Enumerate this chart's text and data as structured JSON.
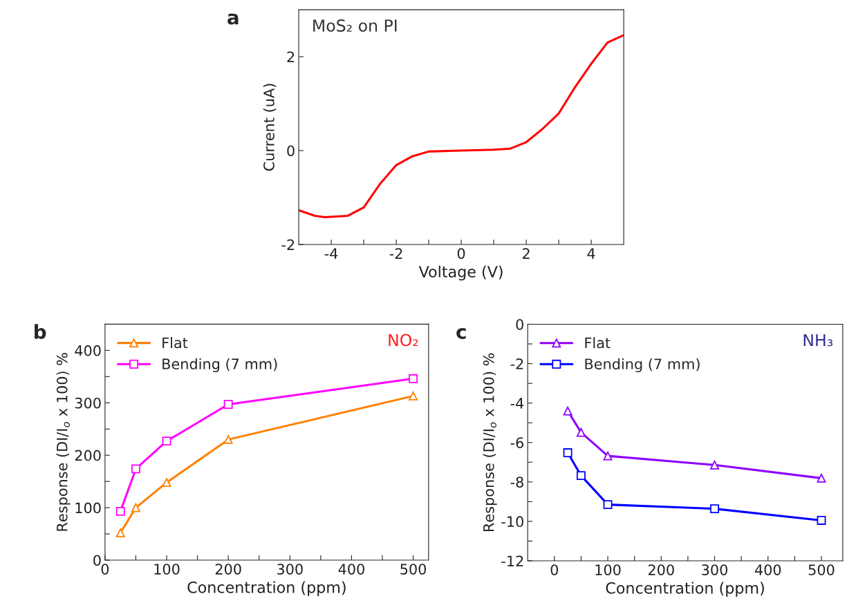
{
  "chart_data": [
    {
      "type": "line",
      "title": "a",
      "xlabel": "Voltage (V)",
      "ylabel": "Current (uA)",
      "annotations": [
        "MoS₂ on PI"
      ],
      "xlim": [
        -5,
        5
      ],
      "ylim": [
        -2,
        3
      ],
      "xticks": [
        -4,
        {
          "value": -3,
          "label": null
        },
        -2,
        {
          "value": -1,
          "label": null
        },
        0,
        {
          "value": 1,
          "label": null
        },
        2,
        {
          "value": 3,
          "label": null
        },
        4
      ],
      "yticks": [
        -2,
        0,
        2
      ],
      "x": [
        -5,
        -4.5,
        -4.2,
        -3.5,
        -3,
        -2.5,
        -2,
        -1.5,
        -1,
        0,
        1,
        1.5,
        2,
        2.5,
        3,
        3.5,
        4,
        4.5,
        5
      ],
      "series": [
        {
          "color": "#ff0000",
          "values": [
            -1.27,
            -1.39,
            -1.42,
            -1.39,
            -1.21,
            -0.71,
            -0.31,
            -0.12,
            -0.02,
            0,
            0.02,
            0.04,
            0.18,
            0.46,
            0.79,
            1.35,
            1.85,
            2.3,
            2.46
          ]
        }
      ],
      "grid": false,
      "marker": "none",
      "line_style": "solid"
    },
    {
      "type": "line",
      "title": "b",
      "xlabel": "Concentration (ppm)",
      "ylabel": "Response (DI/I$_{o}$ x 100) %",
      "annotations": [
        "NO₂"
      ],
      "xlim": [
        0,
        525
      ],
      "ylim": [
        0,
        450
      ],
      "xticks": [
        0,
        {
          "value": 50,
          "label": null
        },
        100,
        {
          "value": 150,
          "label": null
        },
        200,
        {
          "value": 250,
          "label": null
        },
        300,
        {
          "value": 350,
          "label": null
        },
        400,
        {
          "value": 450,
          "label": null
        },
        500
      ],
      "yticks": [
        0,
        {
          "value": 50,
          "label": null
        },
        100,
        {
          "value": 150,
          "label": null
        },
        200,
        {
          "value": 250,
          "label": null
        },
        300,
        {
          "value": 350,
          "label": null
        },
        400
      ],
      "x": [
        25,
        50,
        100,
        200,
        500
      ],
      "series": [
        {
          "name": "Flat",
          "color": "#ff8000",
          "marker": "triangle",
          "values": [
            52,
            100,
            148,
            230,
            313
          ]
        },
        {
          "name": "Bending (7 mm)",
          "color": "#ff00ff",
          "marker": "square",
          "values": [
            93,
            174,
            227,
            297,
            346
          ]
        }
      ],
      "grid": false,
      "legend": "top left",
      "line_style": "solid"
    },
    {
      "type": "line",
      "title": "c",
      "xlabel": "Concentration (ppm)",
      "ylabel": "Response (DI/I$_{o}$ x 100) %",
      "annotations": [
        "NH₃"
      ],
      "xlim": [
        -50,
        540
      ],
      "ylim": [
        -12,
        0
      ],
      "xticks": [
        0,
        {
          "value": 50,
          "label": null
        },
        100,
        {
          "value": 150,
          "label": null
        },
        200,
        {
          "value": 250,
          "label": null
        },
        300,
        {
          "value": 350,
          "label": null
        },
        400,
        {
          "value": 450,
          "label": null
        },
        500
      ],
      "yticks": [
        -12,
        {
          "value": -11,
          "label": null
        },
        -10,
        {
          "value": -9,
          "label": null
        },
        -8,
        {
          "value": -7,
          "label": null
        },
        -6,
        {
          "value": -5,
          "label": null
        },
        -4,
        {
          "value": -3,
          "label": null
        },
        -2,
        {
          "value": -1,
          "label": null
        },
        0
      ],
      "x": [
        25,
        50,
        100,
        300,
        500
      ],
      "series": [
        {
          "name": "Flat",
          "color": "#8f00ff",
          "marker": "triangle",
          "values": [
            -4.4,
            -5.49,
            -6.68,
            -7.14,
            -7.81
          ]
        },
        {
          "name": "Bending (7 mm)",
          "color": "#0000ff",
          "marker": "square",
          "values": [
            -6.52,
            -7.68,
            -9.15,
            -9.36,
            -9.95
          ]
        }
      ],
      "grid": false,
      "legend": "top left",
      "line_style": "solid"
    }
  ]
}
